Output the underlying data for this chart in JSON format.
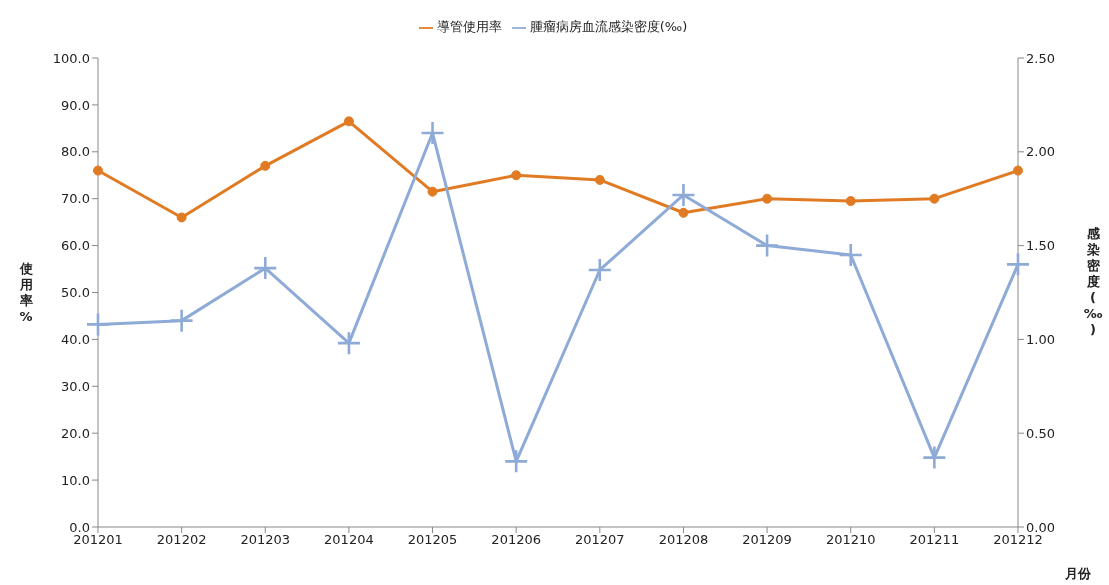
{
  "chart_data": {
    "type": "line",
    "xlabel": "月份",
    "ylabel": "使用率%",
    "y2label": "感染密度(‰)",
    "categories": [
      "201201",
      "201202",
      "201203",
      "201204",
      "201205",
      "201206",
      "201207",
      "201208",
      "201209",
      "201210",
      "201211",
      "201212"
    ],
    "series": [
      {
        "name": "導管使用率",
        "color": "#e07b24",
        "marker": "circle",
        "values": [
          76,
          66,
          77,
          86.5,
          71.5,
          75,
          74,
          67,
          70,
          69.5,
          70,
          76
        ]
      },
      {
        "name": "腫瘤病房血流感染密度(‰)",
        "color": "#8eaad6",
        "marker": "cross",
        "axis": "y2",
        "values": [
          1.08,
          1.1,
          1.38,
          0.98,
          2.1,
          0.35,
          1.37,
          1.77,
          1.5,
          1.45,
          0.37,
          1.4
        ]
      }
    ],
    "ylim": [
      0,
      100
    ],
    "yticks": [
      {
        "value": 0,
        "label": "0.0"
      },
      {
        "value": 10,
        "label": "10.0"
      },
      {
        "value": 20,
        "label": "20.0"
      },
      {
        "value": 30,
        "label": "30.0"
      },
      {
        "value": 40,
        "label": "40.0"
      },
      {
        "value": 50,
        "label": "50.0"
      },
      {
        "value": 60,
        "label": "60.0"
      },
      {
        "value": 70,
        "label": "70.0"
      },
      {
        "value": 80,
        "label": "80.0"
      },
      {
        "value": 90,
        "label": "90.0"
      },
      {
        "value": 100,
        "label": "100.0"
      }
    ],
    "y2lim": [
      0,
      2.5
    ],
    "y2ticks": [
      {
        "value": 0,
        "label": "0.00"
      },
      {
        "value": 0.5,
        "label": "0.50"
      },
      {
        "value": 1,
        "label": "1.00"
      },
      {
        "value": 1.5,
        "label": "1.50"
      },
      {
        "value": 2,
        "label": "2.00"
      },
      {
        "value": 2.5,
        "label": "2.50"
      }
    ],
    "grid": false,
    "legend": "top",
    "line_style": "solid"
  }
}
